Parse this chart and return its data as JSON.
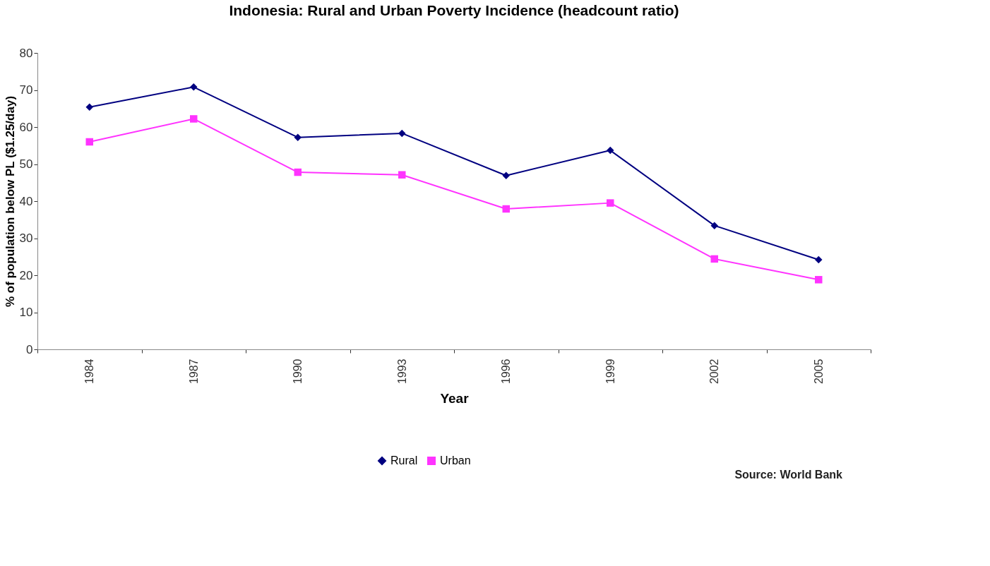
{
  "chart_data": {
    "type": "line",
    "title": "Indonesia: Rural and Urban Poverty Incidence (headcount ratio)",
    "xlabel": "Year",
    "ylabel": "% of population below PL ($1.25/day)",
    "categories": [
      "1984",
      "1987",
      "1990",
      "1993",
      "1996",
      "1999",
      "2002",
      "2005"
    ],
    "series": [
      {
        "name": "Rural",
        "color": "#000080",
        "marker": "diamond",
        "values": [
          65.4,
          70.8,
          57.2,
          58.3,
          46.9,
          53.7,
          33.4,
          24.2
        ]
      },
      {
        "name": "Urban",
        "color": "#ff33ff",
        "marker": "square",
        "values": [
          56.0,
          62.2,
          47.8,
          47.1,
          37.9,
          39.5,
          24.4,
          18.8
        ]
      }
    ],
    "ylim": [
      0,
      80
    ],
    "yticks": [
      0,
      10,
      20,
      30,
      40,
      50,
      60,
      70,
      80
    ],
    "grid": false,
    "legend": "bottom",
    "line_style": "solid",
    "annotations": [
      "Source: World Bank"
    ]
  }
}
